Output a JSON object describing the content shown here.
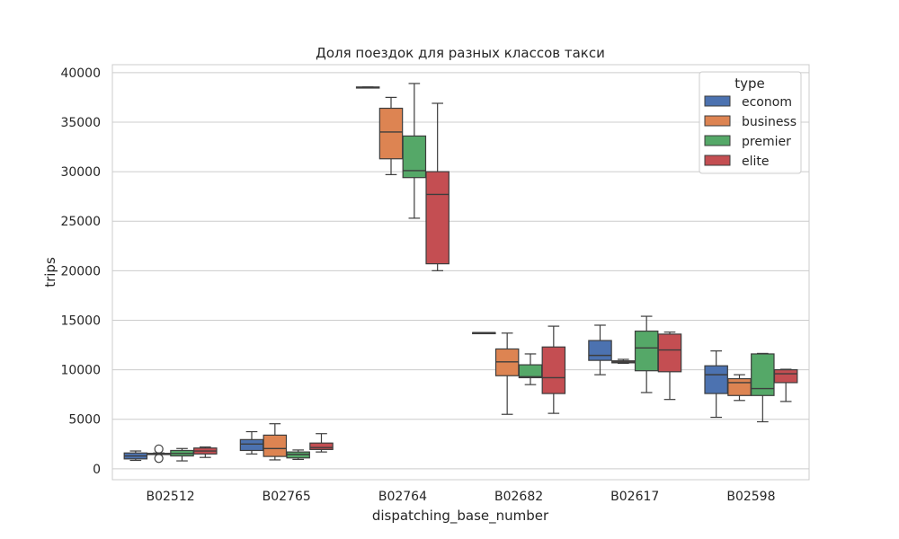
{
  "chart_data": {
    "type": "box",
    "title": "Доля поездок для разных классов такси",
    "xlabel": "dispatching_base_number",
    "ylabel": "trips",
    "ylim": [
      -1100,
      40800
    ],
    "yticks": [
      0,
      5000,
      10000,
      15000,
      20000,
      25000,
      30000,
      35000,
      40000
    ],
    "grid": true,
    "legend": {
      "title": "type",
      "position": "top-right"
    },
    "categories": [
      "B02512",
      "B02765",
      "B02764",
      "B02682",
      "B02617",
      "B02598"
    ],
    "series": [
      {
        "name": "econom",
        "color": "#4c72b0",
        "boxes": [
          {
            "min": 850,
            "q1": 1000,
            "median": 1300,
            "q3": 1600,
            "max": 1800,
            "outliers": []
          },
          {
            "min": 1500,
            "q1": 1850,
            "median": 2500,
            "q3": 2950,
            "max": 3750,
            "outliers": []
          },
          {
            "min": 38500,
            "q1": 38500,
            "median": 38500,
            "q3": 38550,
            "max": 38550,
            "outliers": []
          },
          {
            "min": 13700,
            "q1": 13700,
            "median": 13750,
            "q3": 13750,
            "max": 13750,
            "outliers": []
          },
          {
            "min": 9500,
            "q1": 10950,
            "median": 11450,
            "q3": 12950,
            "max": 14500,
            "outliers": []
          },
          {
            "min": 5200,
            "q1": 7600,
            "median": 9500,
            "q3": 10400,
            "max": 11900,
            "outliers": []
          }
        ]
      },
      {
        "name": "business",
        "color": "#dd8452",
        "boxes": [
          {
            "min": 1500,
            "q1": 1500,
            "median": 1550,
            "q3": 1550,
            "max": 1600,
            "outliers": [
              2000,
              1050
            ]
          },
          {
            "min": 900,
            "q1": 1250,
            "median": 2050,
            "q3": 3400,
            "max": 4550,
            "outliers": []
          },
          {
            "min": 29700,
            "q1": 31300,
            "median": 34000,
            "q3": 36400,
            "max": 37500,
            "outliers": []
          },
          {
            "min": 5500,
            "q1": 9400,
            "median": 10800,
            "q3": 12100,
            "max": 13700,
            "outliers": []
          },
          {
            "min": 10650,
            "q1": 10700,
            "median": 10800,
            "q3": 10900,
            "max": 11050,
            "outliers": []
          },
          {
            "min": 6900,
            "q1": 7400,
            "median": 8700,
            "q3": 9100,
            "max": 9500,
            "outliers": []
          }
        ]
      },
      {
        "name": "premier",
        "color": "#55a868",
        "boxes": [
          {
            "min": 800,
            "q1": 1300,
            "median": 1550,
            "q3": 1850,
            "max": 2050,
            "outliers": []
          },
          {
            "min": 950,
            "q1": 1100,
            "median": 1450,
            "q3": 1700,
            "max": 1900,
            "outliers": []
          },
          {
            "min": 25300,
            "q1": 29400,
            "median": 30100,
            "q3": 33600,
            "max": 38900,
            "outliers": []
          },
          {
            "min": 8500,
            "q1": 9200,
            "median": 9300,
            "q3": 10500,
            "max": 11600,
            "outliers": []
          },
          {
            "min": 7700,
            "q1": 9900,
            "median": 12200,
            "q3": 13900,
            "max": 15400,
            "outliers": []
          },
          {
            "min": 4750,
            "q1": 7400,
            "median": 8100,
            "q3": 11600,
            "max": 11650,
            "outliers": []
          }
        ]
      },
      {
        "name": "elite",
        "color": "#c44e52",
        "boxes": [
          {
            "min": 1150,
            "q1": 1500,
            "median": 1800,
            "q3": 2100,
            "max": 2200,
            "outliers": []
          },
          {
            "min": 1700,
            "q1": 1950,
            "median": 2150,
            "q3": 2600,
            "max": 3550,
            "outliers": []
          },
          {
            "min": 20000,
            "q1": 20700,
            "median": 27700,
            "q3": 30000,
            "max": 36900,
            "outliers": []
          },
          {
            "min": 5600,
            "q1": 7600,
            "median": 9200,
            "q3": 12300,
            "max": 14400,
            "outliers": []
          },
          {
            "min": 7000,
            "q1": 9800,
            "median": 12000,
            "q3": 13600,
            "max": 13800,
            "outliers": []
          },
          {
            "min": 6800,
            "q1": 8700,
            "median": 9600,
            "q3": 10000,
            "max": 10050,
            "outliers": []
          }
        ]
      }
    ]
  }
}
